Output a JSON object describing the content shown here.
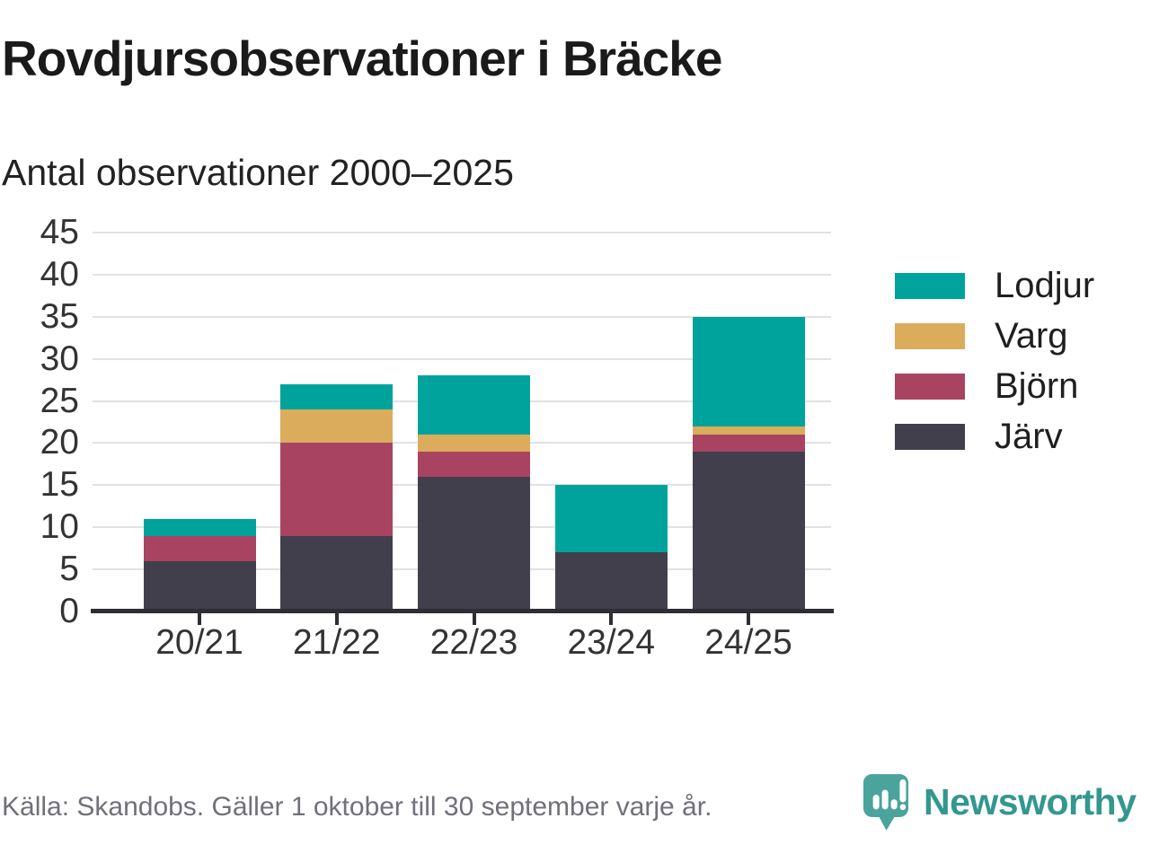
{
  "header": {
    "title": "Rovdjursobservationer i Bräcke",
    "subtitle": "Antal observationer 2000–2025"
  },
  "chart_data": {
    "type": "bar",
    "stacked": true,
    "title": "Rovdjursobservationer i Bräcke",
    "subtitle": "Antal observationer 2000–2025",
    "categories": [
      "20/21",
      "21/22",
      "22/23",
      "23/24",
      "24/25"
    ],
    "series": [
      {
        "name": "Järv",
        "color": "#423f4d",
        "values": [
          6,
          9,
          16,
          7,
          19
        ]
      },
      {
        "name": "Björn",
        "color": "#a84462",
        "values": [
          3,
          11,
          3,
          0,
          2
        ]
      },
      {
        "name": "Varg",
        "color": "#dbac5b",
        "values": [
          0,
          4,
          2,
          0,
          1
        ]
      },
      {
        "name": "Lodjur",
        "color": "#00a39b",
        "values": [
          2,
          3,
          7,
          8,
          13
        ]
      }
    ],
    "totals": [
      11,
      27,
      28,
      15,
      35
    ],
    "ylim": [
      0,
      45
    ],
    "ytick_step": 5,
    "yticks": [
      0,
      5,
      10,
      15,
      20,
      25,
      30,
      35,
      40,
      45
    ],
    "grid": true,
    "legend_position": "right",
    "legend_order": [
      "Lodjur",
      "Varg",
      "Björn",
      "Järv"
    ]
  },
  "footer": {
    "source": "Källa: Skandobs. Gäller 1 oktober till 30 september varje år."
  },
  "brand": {
    "name": "Newsworthy",
    "color": "#33978f",
    "icon": "newsworthy-logo-icon",
    "icon_color": "#4aa39c"
  },
  "colors": {
    "grid": "#e2e2e4",
    "axis": "#2e2e34",
    "tick_text": "#333333",
    "title_text": "#1a1a1a",
    "footer_text": "#70707a"
  }
}
